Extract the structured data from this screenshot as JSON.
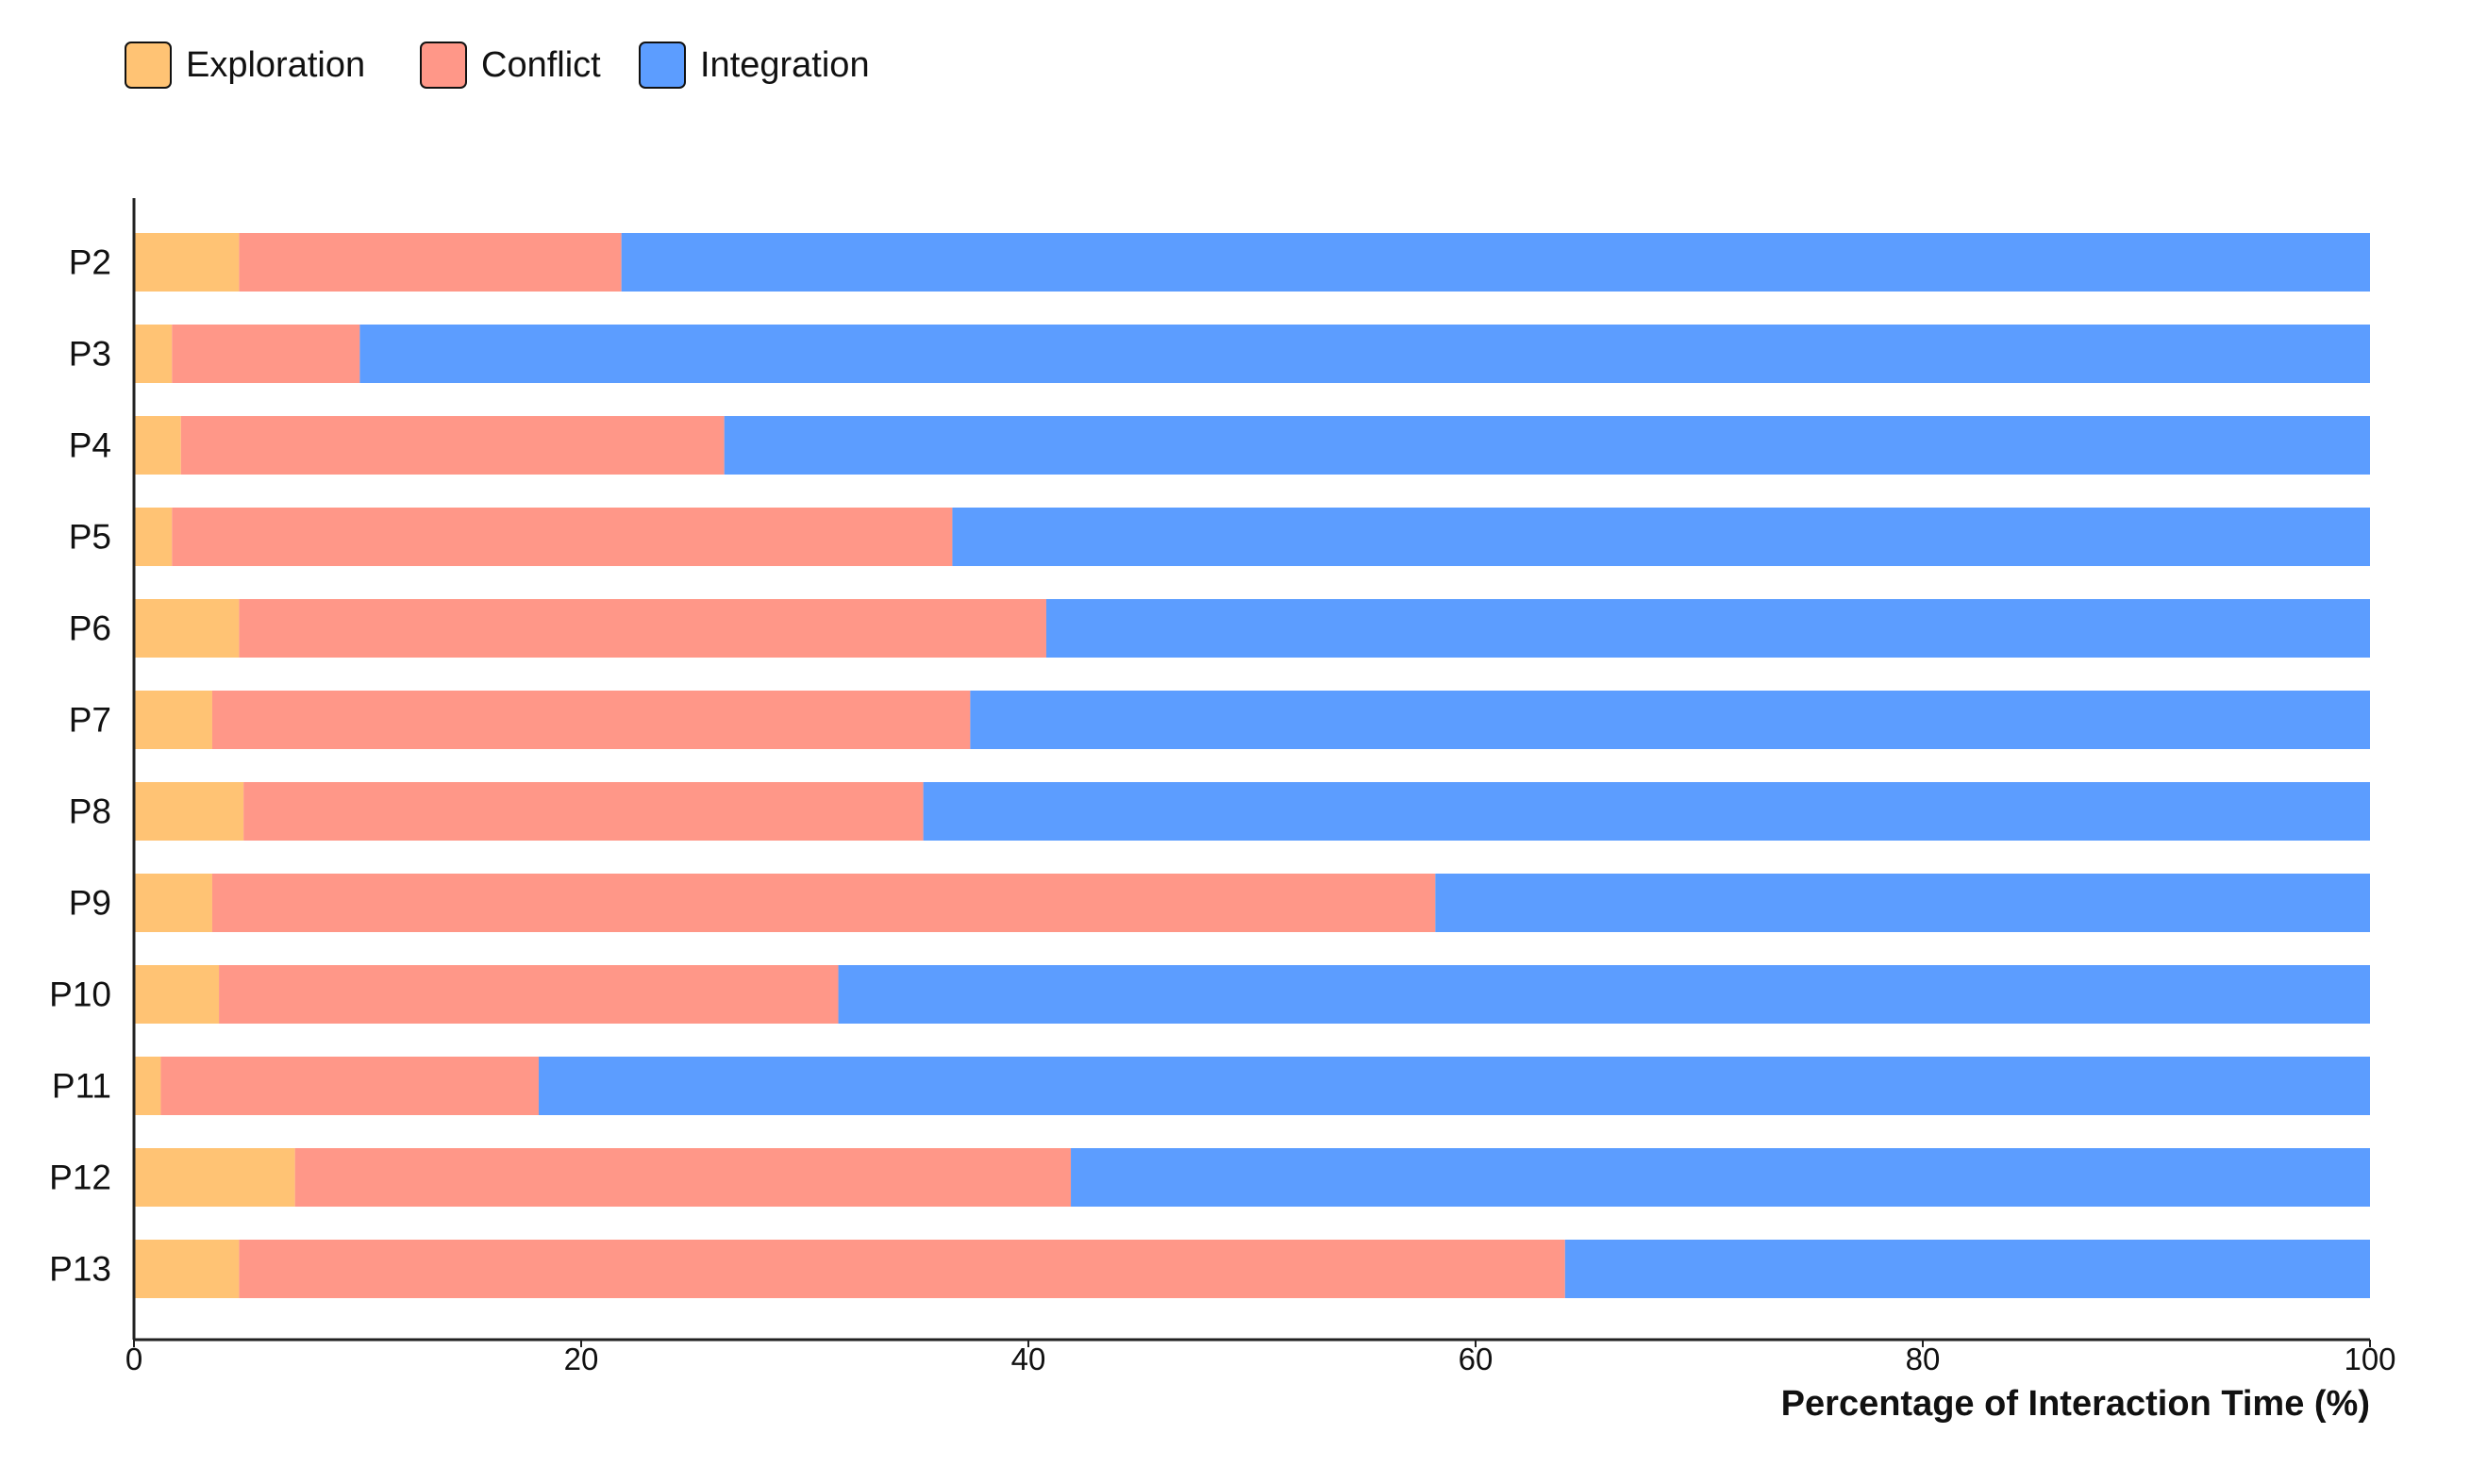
{
  "chart_data": {
    "type": "bar",
    "orientation": "horizontal",
    "stacked": true,
    "title": "",
    "xlabel": "Percentage of Interaction Time (%)",
    "ylabel": "",
    "xlim": [
      0,
      100
    ],
    "xticks": [
      0,
      20,
      40,
      60,
      80,
      100
    ],
    "grid": false,
    "legend_position": "top-left",
    "categories": [
      "P2",
      "P3",
      "P4",
      "P5",
      "P6",
      "P7",
      "P8",
      "P9",
      "P10",
      "P11",
      "P12",
      "P13"
    ],
    "series": [
      {
        "name": "Exploration",
        "color": "#FFC374",
        "values": [
          4.7,
          1.7,
          2.1,
          1.7,
          4.7,
          3.5,
          4.9,
          3.5,
          3.8,
          1.2,
          7.2,
          4.7
        ]
      },
      {
        "name": "Conflict",
        "color": "#FF9788",
        "values": [
          17.1,
          8.4,
          24.3,
          34.9,
          36.1,
          33.9,
          30.4,
          54.7,
          27.7,
          16.9,
          34.7,
          59.3
        ]
      },
      {
        "name": "Integration",
        "color": "#5C9DFF",
        "values": [
          78.2,
          89.9,
          73.6,
          63.4,
          59.2,
          62.6,
          64.7,
          41.8,
          68.5,
          81.9,
          58.1,
          36.0
        ]
      }
    ]
  }
}
